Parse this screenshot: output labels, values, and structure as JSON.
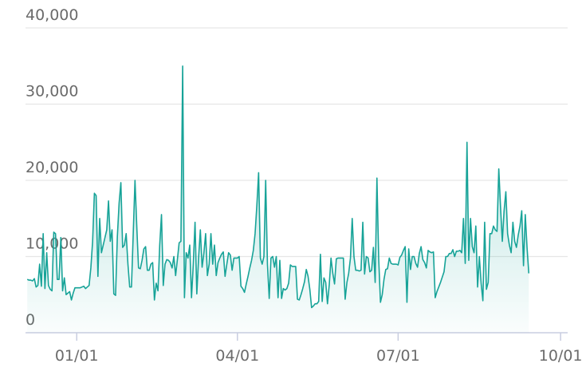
{
  "chart_data": {
    "type": "area",
    "title": "",
    "xlabel": "",
    "ylabel": "",
    "ylim": [
      0,
      40000
    ],
    "yticks": [
      0,
      10000,
      20000,
      30000,
      40000
    ],
    "ytick_labels": [
      "0",
      "10,000",
      "20,000",
      "30,000",
      "40,000"
    ],
    "xlim": [
      "2019-12-03",
      "2020-10-05"
    ],
    "xticks": [
      "2020-01-01",
      "2020-04-01",
      "2020-07-01",
      "2020-10-01"
    ],
    "xtick_labels": [
      "01/01",
      "04/01",
      "07/01",
      "10/01"
    ],
    "grid": true,
    "legend": "none",
    "line_color": "#17a398",
    "fill_color": "#17a398",
    "series": [
      {
        "name": "",
        "x_start": "2019-12-04",
        "step_days": 1,
        "values": [
          7000,
          6900,
          6900,
          6800,
          7100,
          6000,
          6200,
          9000,
          6100,
          13000,
          5800,
          10500,
          6200,
          5700,
          5500,
          13200,
          13000,
          7000,
          7000,
          12500,
          5500,
          7200,
          5000,
          5200,
          5400,
          4300,
          5200,
          5900,
          5900,
          5900,
          5900,
          6000,
          6100,
          5800,
          6000,
          6200,
          8500,
          12000,
          18300,
          18000,
          7400,
          15000,
          10500,
          11500,
          12500,
          13500,
          17300,
          12000,
          13500,
          5100,
          4900,
          12600,
          17000,
          19700,
          11200,
          11500,
          13000,
          9000,
          6000,
          6000,
          13000,
          20000,
          14000,
          8500,
          8400,
          9500,
          11000,
          11300,
          8200,
          8200,
          9000,
          9200,
          4300,
          6500,
          5500,
          11500,
          15500,
          6200,
          9000,
          9600,
          9500,
          9200,
          8500,
          10000,
          7500,
          9600,
          11800,
          12000,
          35000,
          4600,
          10500,
          9800,
          11500,
          4600,
          9000,
          14500,
          5100,
          9800,
          13500,
          8600,
          10400,
          13000,
          7500,
          9000,
          13000,
          9000,
          11500,
          7500,
          9200,
          9800,
          10300,
          10600,
          7400,
          9000,
          10500,
          10200,
          8200,
          9800,
          9800,
          9800,
          10000,
          6100,
          5800,
          5300,
          6400,
          7400,
          8500,
          9500,
          10800,
          13000,
          16700,
          21000,
          9800,
          9000,
          10000,
          20000,
          9000,
          4500,
          9800,
          10000,
          8600,
          10000,
          4600,
          9500,
          4500,
          5800,
          5600,
          5800,
          6500,
          8900,
          8700,
          8700,
          8700,
          4400,
          4300,
          5000,
          5800,
          6700,
          8300,
          7400,
          5700,
          3300,
          3500,
          3800,
          3800,
          4100,
          10300,
          4100,
          7200,
          6600,
          3800,
          6300,
          9800,
          7800,
          6400,
          9700,
          9800,
          9800,
          9800,
          9800,
          4400,
          6600,
          7800,
          9800,
          15000,
          10000,
          8200,
          8200,
          8100,
          8200,
          14500,
          7700,
          10000,
          9800,
          8000,
          8200,
          11200,
          6600,
          20300,
          9700,
          4000,
          5000,
          7000,
          8300,
          8400,
          9800,
          9100,
          9000,
          9000,
          9000,
          8900,
          9900,
          10200,
          10800,
          11300,
          4000,
          11000,
          8300,
          10000,
          10000,
          9100,
          8600,
          10400,
          11300,
          9600,
          9200,
          8500,
          10800,
          10600,
          10500,
          10600,
          4600,
          5400,
          6000,
          6600,
          7300,
          8000,
          10000,
          10000,
          10400,
          10400,
          10900,
          10000,
          10700,
          10700,
          10800,
          10500,
          15000,
          9100,
          25000,
          9500,
          15000,
          11300,
          10500,
          14000,
          6000,
          10000,
          6500,
          4200,
          14500,
          5700,
          6600,
          13000,
          13000,
          14000,
          13500,
          13300,
          21500,
          16500,
          12000,
          16000,
          18500,
          13000,
          11500,
          10500,
          14500,
          12000,
          11200,
          12800,
          14000,
          16000,
          8800,
          15500,
          11200,
          7800
        ]
      }
    ]
  }
}
